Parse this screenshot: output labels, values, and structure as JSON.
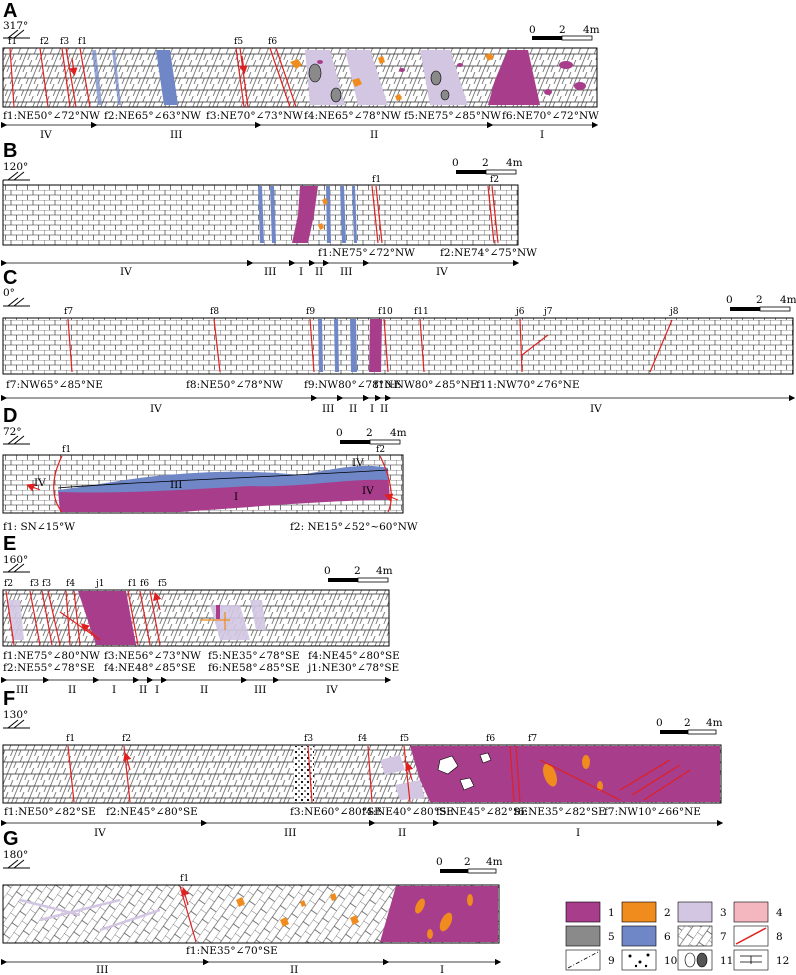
{
  "panels": [
    {
      "id": "A",
      "label": "A",
      "azimuth": "317°",
      "faults": [
        "f1",
        "f2",
        "f3",
        "f1",
        "f5",
        "f6"
      ],
      "scale": {
        "z": "0",
        "m": "2",
        "e": "4m"
      },
      "attitudes": [
        "f1:NE50°∠72°NW",
        "f2:NE65°∠63°NW",
        "f3:NE70°∠73°NW",
        "f4:NE65°∠78°NW",
        "f5:NE75°∠85°NW",
        "f6:NE70°∠72°NW"
      ],
      "zones": [
        "IV",
        "III",
        "II",
        "I"
      ]
    },
    {
      "id": "B",
      "label": "B",
      "azimuth": "120°",
      "faults": [
        "f1",
        "f2"
      ],
      "scale": {
        "z": "0",
        "m": "2",
        "e": "4m"
      },
      "attitudes": [
        "f1:NE75°∠72°NW",
        "f2:NE74°∠75°NW"
      ],
      "zones": [
        "IV",
        "III",
        "I",
        "II",
        "III",
        "IV"
      ]
    },
    {
      "id": "C",
      "label": "C",
      "azimuth": "0°",
      "faults": [
        "f7",
        "f8",
        "f9",
        "f10",
        "f11",
        "j6",
        "j7",
        "j8"
      ],
      "scale": {
        "z": "0",
        "m": "2",
        "e": "4m"
      },
      "attitudes": [
        "f7:NW65°∠85°NE",
        "f8:NE50°∠78°NW",
        "f9:NW80°∠78°NE",
        "f10:NW80°∠85°NE",
        "f11:NW70°∠76°NE"
      ],
      "zones": [
        "IV",
        "III",
        "II",
        "I",
        "II",
        "IV"
      ]
    },
    {
      "id": "D",
      "label": "D",
      "azimuth": "72°",
      "faults": [
        "f1",
        "f2"
      ],
      "scale": {
        "z": "0",
        "m": "2",
        "e": "4m"
      },
      "attitudes": [
        "f1: SN∠15°W",
        "f2: NE15°∠52°~60°NW"
      ],
      "inner": [
        "IV",
        "III",
        "I",
        "IV",
        "IV"
      ]
    },
    {
      "id": "E",
      "label": "E",
      "azimuth": "160°",
      "faults": [
        "f2",
        "f3",
        "f3",
        "f4",
        "j1",
        "f1",
        "f6",
        "f5"
      ],
      "scale": {
        "z": "0",
        "m": "2",
        "e": "4m"
      },
      "attitudes": [
        "f1:NE75°∠80°NW",
        "f2:NE55°∠78°SE",
        "f3:NE56°∠73°NW",
        "f4:NE48°∠85°SE",
        "f5:NE35°∠78°SE",
        "f6:NE58°∠85°SE",
        "f4:NE45°∠80°SE",
        "j1:NE30°∠78°SE"
      ],
      "zones": [
        "III",
        "II",
        "I",
        "II",
        "I",
        "II",
        "III",
        "IV"
      ]
    },
    {
      "id": "F",
      "label": "F",
      "azimuth": "130°",
      "faults": [
        "f1",
        "f2",
        "f3",
        "f4",
        "f5",
        "f6",
        "f7"
      ],
      "scale": {
        "z": "0",
        "m": "2",
        "e": "4m"
      },
      "attitudes": [
        "f1:NE50°∠82°SE",
        "f2:NE45°∠80°SE",
        "f3:NE60°∠80°SE",
        "f4:NE40°∠80°SE",
        "f5:NE45°∠82°SE",
        "f6:NE35°∠82°SE",
        "f7:NW10°∠66°NE"
      ],
      "zones": [
        "IV",
        "III",
        "II",
        "I"
      ]
    },
    {
      "id": "G",
      "label": "G",
      "azimuth": "180°",
      "faults": [
        "f1"
      ],
      "scale": {
        "z": "0",
        "m": "2",
        "e": "4m"
      },
      "attitudes": [
        "f1:NE35°∠70°SE"
      ],
      "zones": [
        "III",
        "II",
        "I"
      ]
    }
  ],
  "legend": [
    "1",
    "2",
    "3",
    "4",
    "5",
    "6",
    "7",
    "8",
    "9",
    "10",
    "11",
    "12"
  ],
  "colors": {
    "magenta": "#a83d8c",
    "orange": "#f08b1d",
    "lavender": "#d2c6e2",
    "pink": "#f4b6bf",
    "gray": "#8a8a8a",
    "blue": "#6f86c7",
    "red": "#e02020"
  }
}
